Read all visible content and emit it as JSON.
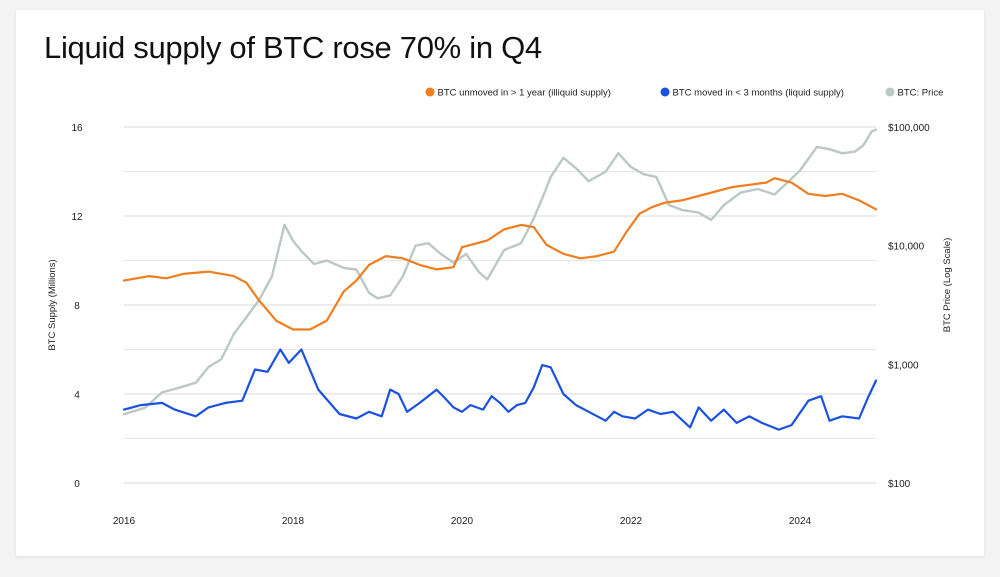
{
  "title": "Liquid supply of BTC rose 70% in Q4",
  "colors": {
    "illiquid": "#f07e1f",
    "liquid": "#1a52e0",
    "price": "#bcc8c5",
    "grid": "#d9d9d9",
    "text": "#222222"
  },
  "legend": [
    {
      "label": "BTC unmoved in > 1 year (illiquid supply)",
      "color": "#f07e1f"
    },
    {
      "label": "BTC moved in < 3 months (liquid supply)",
      "color": "#1a52e0"
    },
    {
      "label": "BTC: Price",
      "color": "#bcc8c5"
    }
  ],
  "chart_data": {
    "type": "line",
    "title": "Liquid supply of BTC rose 70% in Q4",
    "xlabel": "",
    "ylabel_left": "BTC Supply (Millions)",
    "ylabel_right": "BTC Price (Log Scale)",
    "xlim": [
      2016.0,
      2024.9
    ],
    "ylim_left": [
      0,
      16
    ],
    "ylim_right": [
      100,
      100000
    ],
    "right_scale": "log",
    "x_ticks": [
      2016,
      2018,
      2020,
      2022,
      2024
    ],
    "x_tick_labels": [
      "2016",
      "2018",
      "2020",
      "2022",
      "2024"
    ],
    "y_left_ticks": [
      0,
      4,
      8,
      12,
      16
    ],
    "y_left_tick_labels": [
      "0",
      "4",
      "8",
      "12",
      "16"
    ],
    "y_right_ticks": [
      100,
      1000,
      10000,
      100000
    ],
    "y_right_tick_labels": [
      "$100",
      "$1,000",
      "$10,000",
      "$100,000"
    ],
    "grid": true,
    "legend_position": "top-right",
    "series": [
      {
        "name": "BTC unmoved in > 1 year (illiquid supply)",
        "axis": "left",
        "x": [
          2016.0,
          2016.3,
          2016.5,
          2016.7,
          2017.0,
          2017.3,
          2017.45,
          2017.6,
          2017.8,
          2018.0,
          2018.2,
          2018.4,
          2018.6,
          2018.75,
          2018.9,
          2019.1,
          2019.3,
          2019.5,
          2019.7,
          2019.9,
          2020.0,
          2020.1,
          2020.3,
          2020.5,
          2020.7,
          2020.85,
          2021.0,
          2021.2,
          2021.4,
          2021.6,
          2021.8,
          2021.95,
          2022.1,
          2022.25,
          2022.4,
          2022.6,
          2022.8,
          2023.0,
          2023.2,
          2023.4,
          2023.6,
          2023.7,
          2023.9,
          2024.1,
          2024.3,
          2024.5,
          2024.7,
          2024.9
        ],
        "values": [
          9.1,
          9.3,
          9.2,
          9.4,
          9.5,
          9.3,
          9.0,
          8.2,
          7.3,
          6.9,
          6.9,
          7.3,
          8.6,
          9.1,
          9.8,
          10.2,
          10.1,
          9.8,
          9.6,
          9.7,
          10.6,
          10.7,
          10.9,
          11.4,
          11.6,
          11.5,
          10.7,
          10.3,
          10.1,
          10.2,
          10.4,
          11.3,
          12.1,
          12.4,
          12.6,
          12.7,
          12.9,
          13.1,
          13.3,
          13.4,
          13.5,
          13.7,
          13.5,
          13.0,
          12.9,
          13.0,
          12.7,
          12.3
        ]
      },
      {
        "name": "BTC moved in < 3 months (liquid supply)",
        "axis": "left",
        "x": [
          2016.0,
          2016.2,
          2016.45,
          2016.6,
          2016.85,
          2017.0,
          2017.2,
          2017.4,
          2017.55,
          2017.7,
          2017.85,
          2017.95,
          2018.1,
          2018.3,
          2018.55,
          2018.75,
          2018.9,
          2019.05,
          2019.15,
          2019.25,
          2019.35,
          2019.5,
          2019.7,
          2019.8,
          2019.9,
          2020.0,
          2020.1,
          2020.25,
          2020.35,
          2020.45,
          2020.55,
          2020.65,
          2020.75,
          2020.85,
          2020.95,
          2021.05,
          2021.2,
          2021.35,
          2021.5,
          2021.7,
          2021.8,
          2021.9,
          2022.05,
          2022.2,
          2022.35,
          2022.5,
          2022.7,
          2022.8,
          2022.95,
          2023.1,
          2023.25,
          2023.4,
          2023.55,
          2023.75,
          2023.9,
          2024.1,
          2024.25,
          2024.35,
          2024.5,
          2024.7,
          2024.8,
          2024.9
        ],
        "values": [
          3.3,
          3.5,
          3.6,
          3.3,
          3.0,
          3.4,
          3.6,
          3.7,
          5.1,
          5.0,
          6.0,
          5.4,
          6.0,
          4.2,
          3.1,
          2.9,
          3.2,
          3.0,
          4.2,
          4.0,
          3.2,
          3.6,
          4.2,
          3.8,
          3.4,
          3.2,
          3.5,
          3.3,
          3.9,
          3.6,
          3.2,
          3.5,
          3.6,
          4.3,
          5.3,
          5.2,
          4.0,
          3.5,
          3.2,
          2.8,
          3.2,
          3.0,
          2.9,
          3.3,
          3.1,
          3.2,
          2.5,
          3.4,
          2.8,
          3.3,
          2.7,
          3.0,
          2.7,
          2.4,
          2.6,
          3.7,
          3.9,
          2.8,
          3.0,
          2.9,
          3.8,
          4.6
        ]
      },
      {
        "name": "BTC: Price",
        "axis": "right",
        "x": [
          2016.0,
          2016.25,
          2016.45,
          2016.6,
          2016.85,
          2017.0,
          2017.15,
          2017.3,
          2017.45,
          2017.6,
          2017.75,
          2017.9,
          2018.0,
          2018.1,
          2018.25,
          2018.4,
          2018.6,
          2018.75,
          2018.9,
          2019.0,
          2019.15,
          2019.3,
          2019.45,
          2019.6,
          2019.75,
          2019.9,
          2020.05,
          2020.2,
          2020.3,
          2020.5,
          2020.7,
          2020.85,
          2020.95,
          2021.05,
          2021.2,
          2021.35,
          2021.5,
          2021.7,
          2021.85,
          2022.0,
          2022.15,
          2022.3,
          2022.45,
          2022.6,
          2022.8,
          2022.95,
          2023.1,
          2023.3,
          2023.5,
          2023.7,
          2023.85,
          2024.0,
          2024.2,
          2024.35,
          2024.5,
          2024.65,
          2024.75,
          2024.85,
          2024.9
        ],
        "values": [
          380,
          430,
          580,
          620,
          700,
          950,
          1100,
          1800,
          2500,
          3500,
          5500,
          15000,
          11000,
          9000,
          7000,
          7500,
          6500,
          6300,
          4000,
          3600,
          3800,
          5500,
          10000,
          10500,
          8500,
          7200,
          8500,
          6000,
          5200,
          9200,
          10500,
          17000,
          25000,
          38000,
          55000,
          45000,
          35000,
          42000,
          60000,
          46000,
          40000,
          38000,
          22000,
          20000,
          19000,
          16500,
          22000,
          28000,
          30000,
          27000,
          34000,
          43000,
          68000,
          65000,
          60000,
          62000,
          70000,
          92000,
          95000
        ]
      }
    ]
  }
}
